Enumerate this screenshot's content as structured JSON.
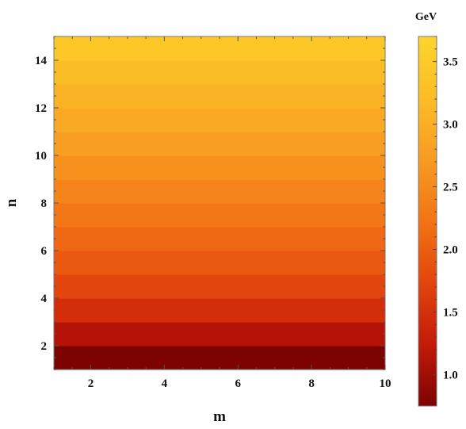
{
  "chart_data": {
    "type": "heatmap",
    "title": "",
    "xlabel": "m",
    "ylabel": "n",
    "xlim": [
      1,
      10
    ],
    "ylim": [
      1,
      15
    ],
    "xticks": [
      2,
      4,
      6,
      8,
      10
    ],
    "yticks": [
      2,
      4,
      6,
      8,
      10,
      12,
      14
    ],
    "description_of_values": "value depends on n only (constant across m)",
    "bands": [
      {
        "n_from": 1,
        "n_to": 2,
        "value": 0.75,
        "color": "#7d0202"
      },
      {
        "n_from": 2,
        "n_to": 3,
        "value": 1.2,
        "color": "#b51208"
      },
      {
        "n_from": 3,
        "n_to": 4,
        "value": 1.52,
        "color": "#d42d09"
      },
      {
        "n_from": 4,
        "n_to": 5,
        "value": 1.75,
        "color": "#e2450d"
      },
      {
        "n_from": 5,
        "n_to": 6,
        "value": 1.95,
        "color": "#eb5810"
      },
      {
        "n_from": 6,
        "n_to": 7,
        "value": 2.13,
        "color": "#f06813"
      },
      {
        "n_from": 7,
        "n_to": 8,
        "value": 2.3,
        "color": "#f37717"
      },
      {
        "n_from": 8,
        "n_to": 9,
        "value": 2.46,
        "color": "#f5851b"
      },
      {
        "n_from": 9,
        "n_to": 10,
        "value": 2.62,
        "color": "#f7921f"
      },
      {
        "n_from": 10,
        "n_to": 11,
        "value": 2.78,
        "color": "#f89e22"
      },
      {
        "n_from": 11,
        "n_to": 12,
        "value": 2.93,
        "color": "#f9a924"
      },
      {
        "n_from": 12,
        "n_to": 13,
        "value": 3.08,
        "color": "#fab325"
      },
      {
        "n_from": 13,
        "n_to": 14,
        "value": 3.23,
        "color": "#fbbd26"
      },
      {
        "n_from": 14,
        "n_to": 15,
        "value": 3.38,
        "color": "#fcc727"
      }
    ],
    "colorbar": {
      "unit": "GeV",
      "range": [
        0.75,
        3.7
      ],
      "ticks": [
        1.0,
        1.5,
        2.0,
        2.5,
        3.0,
        3.5
      ],
      "tick_labels": [
        "1.0",
        "1.5",
        "2.0",
        "2.5",
        "3.0",
        "3.5"
      ],
      "colors": [
        "#7d0202",
        "#c21b08",
        "#e2450d",
        "#f27415",
        "#f89b21",
        "#fbbd26",
        "#fdd42a"
      ]
    }
  }
}
